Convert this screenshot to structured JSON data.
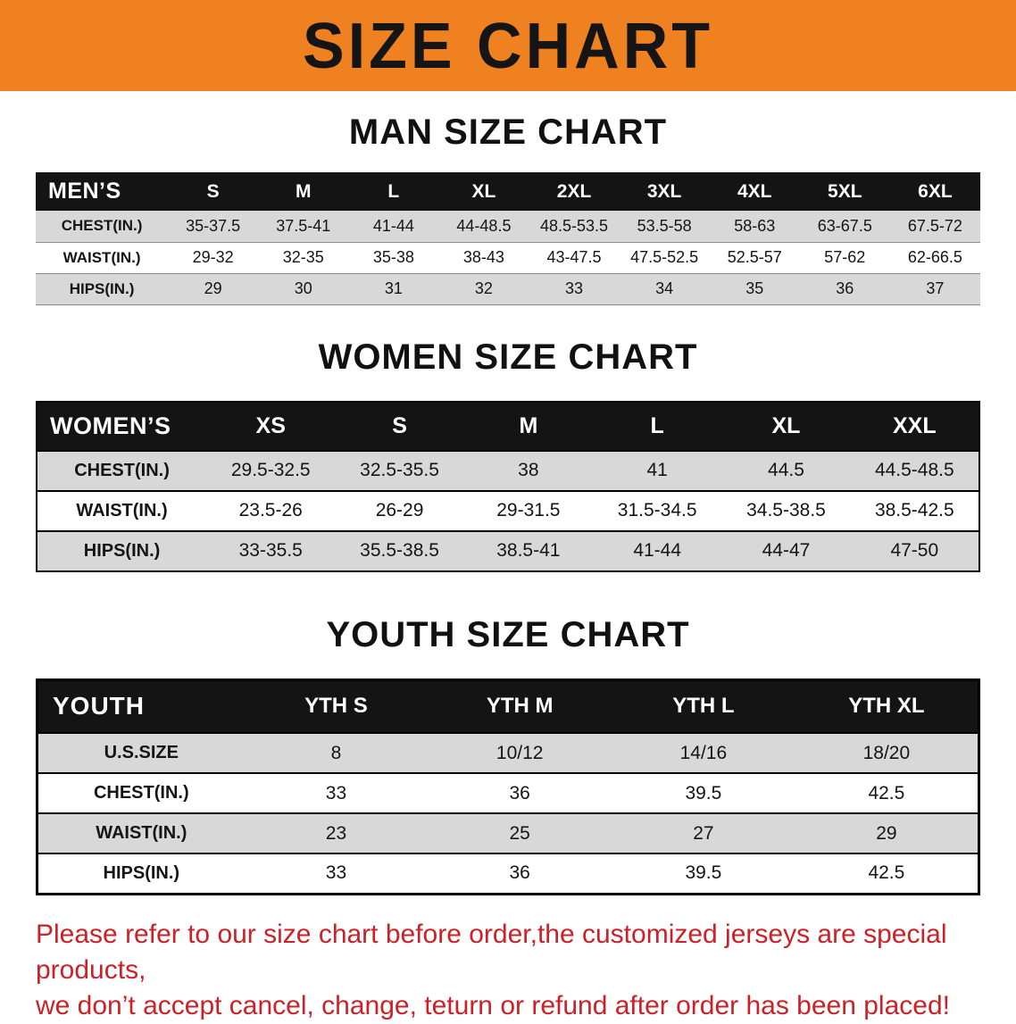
{
  "banner": {
    "title": "SIZE CHART"
  },
  "colors": {
    "banner_bg": "#ef8120",
    "table_header_bg": "#141414",
    "row_shade": "#d8d8d8",
    "note_red": "#cb2128"
  },
  "sections": [
    {
      "heading": "MAN SIZE CHART",
      "corner_label": "MEN’S",
      "columns": [
        "S",
        "M",
        "L",
        "XL",
        "2XL",
        "3XL",
        "4XL",
        "5XL",
        "6XL"
      ],
      "rows": [
        {
          "label": "CHEST(IN.)",
          "values": [
            "35-37.5",
            "37.5-41",
            "41-44",
            "44-48.5",
            "48.5-53.5",
            "53.5-58",
            "58-63",
            "63-67.5",
            "67.5-72"
          ]
        },
        {
          "label": "WAIST(IN.)",
          "values": [
            "29-32",
            "32-35",
            "35-38",
            "38-43",
            "43-47.5",
            "47.5-52.5",
            "52.5-57",
            "57-62",
            "62-66.5"
          ]
        },
        {
          "label": "HIPS(IN.)",
          "values": [
            "29",
            "30",
            "31",
            "32",
            "33",
            "34",
            "35",
            "36",
            "37"
          ]
        }
      ]
    },
    {
      "heading": "WOMEN SIZE CHART",
      "corner_label": "WOMEN’S",
      "columns": [
        "XS",
        "S",
        "M",
        "L",
        "XL",
        "XXL"
      ],
      "rows": [
        {
          "label": "CHEST(IN.)",
          "values": [
            "29.5-32.5",
            "32.5-35.5",
            "38",
            "41",
            "44.5",
            "44.5-48.5"
          ]
        },
        {
          "label": "WAIST(IN.)",
          "values": [
            "23.5-26",
            "26-29",
            "29-31.5",
            "31.5-34.5",
            "34.5-38.5",
            "38.5-42.5"
          ]
        },
        {
          "label": "HIPS(IN.)",
          "values": [
            "33-35.5",
            "35.5-38.5",
            "38.5-41",
            "41-44",
            "44-47",
            "47-50"
          ]
        }
      ]
    },
    {
      "heading": "YOUTH SIZE CHART",
      "corner_label": "YOUTH",
      "columns": [
        "YTH S",
        "YTH M",
        "YTH L",
        "YTH XL"
      ],
      "rows": [
        {
          "label": "U.S.SIZE",
          "values": [
            "8",
            "10/12",
            "14/16",
            "18/20"
          ]
        },
        {
          "label": "CHEST(IN.)",
          "values": [
            "33",
            "36",
            "39.5",
            "42.5"
          ]
        },
        {
          "label": "WAIST(IN.)",
          "values": [
            "23",
            "25",
            "27",
            "29"
          ]
        },
        {
          "label": "HIPS(IN.)",
          "values": [
            "33",
            "36",
            "39.5",
            "42.5"
          ]
        }
      ]
    }
  ],
  "note": {
    "lines": [
      "Please refer to our size chart before order,the customized jerseys are special products,",
      "we don’t accept cancel, change, teturn or refund after order has been placed!"
    ]
  }
}
